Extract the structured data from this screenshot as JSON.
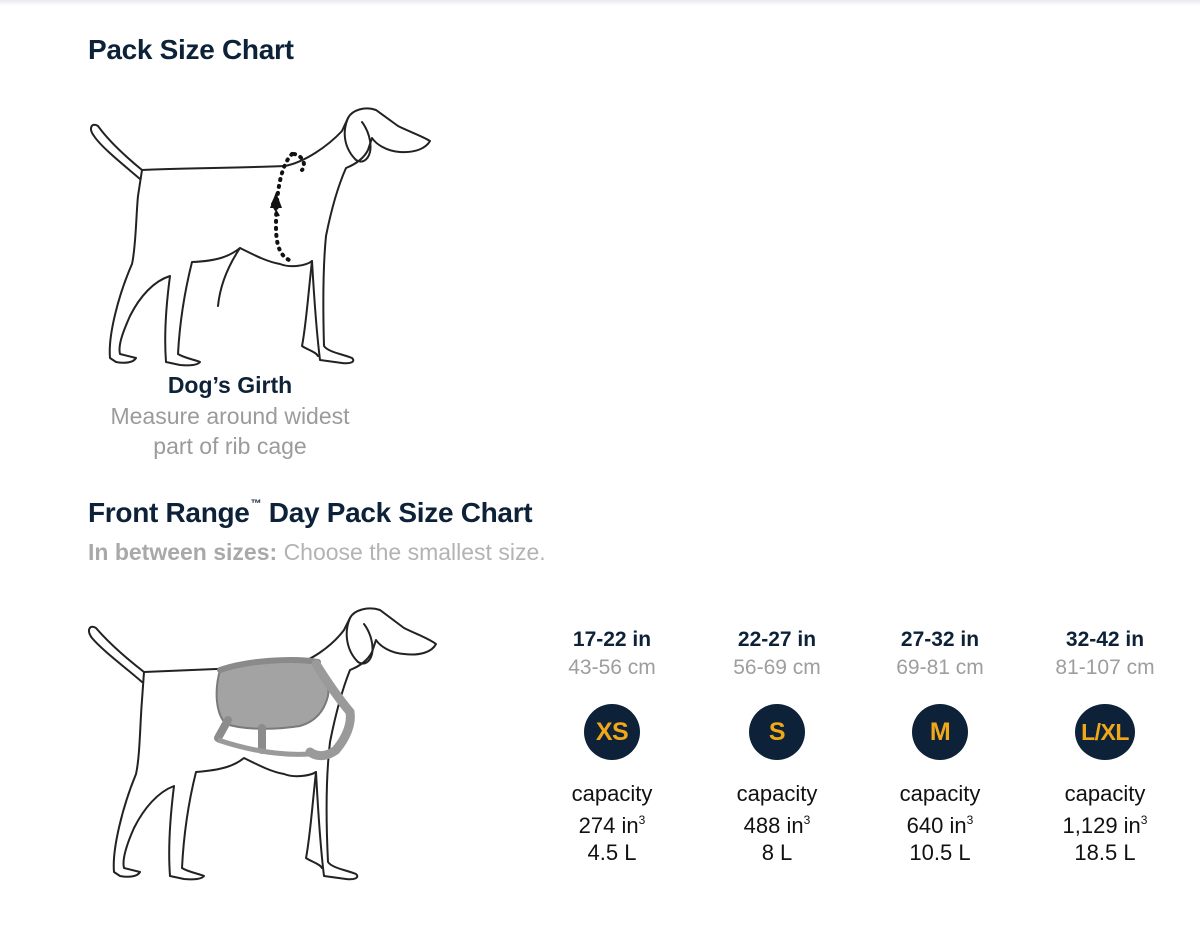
{
  "pack_chart": {
    "title": "Pack Size Chart",
    "girth_label": "Dog’s Girth",
    "girth_desc": "Measure around widest part of rib cage"
  },
  "front_range": {
    "title": "Front Range",
    "trademark": "™",
    "title_rest": " Day Pack Size Chart",
    "note_label": "In between sizes:",
    "note_text": "Choose the smallest size."
  },
  "sizes": [
    {
      "range_in": "17-22 in",
      "range_cm": "43-56 cm",
      "size": "XS",
      "capacity_label": "capacity",
      "capacity_in": "274 in",
      "capacity_unit_exp": "3",
      "capacity_l": "4.5 L"
    },
    {
      "range_in": "22-27 in",
      "range_cm": "56-69 cm",
      "size": "S",
      "capacity_label": "capacity",
      "capacity_in": "488 in",
      "capacity_unit_exp": "3",
      "capacity_l": "8 L"
    },
    {
      "range_in": "27-32 in",
      "range_cm": "69-81 cm",
      "size": "M",
      "capacity_label": "capacity",
      "capacity_in": "640 in",
      "capacity_unit_exp": "3",
      "capacity_l": "10.5 L"
    },
    {
      "range_in": "32-42 in",
      "range_cm": "81-107 cm",
      "size": "L/XL",
      "capacity_label": "capacity",
      "capacity_in": "1,129 in",
      "capacity_unit_exp": "3",
      "capacity_l": "18.5 L"
    }
  ],
  "colors": {
    "navy": "#0d2238",
    "badge_text": "#f0a818",
    "muted": "#9e9e9e"
  }
}
